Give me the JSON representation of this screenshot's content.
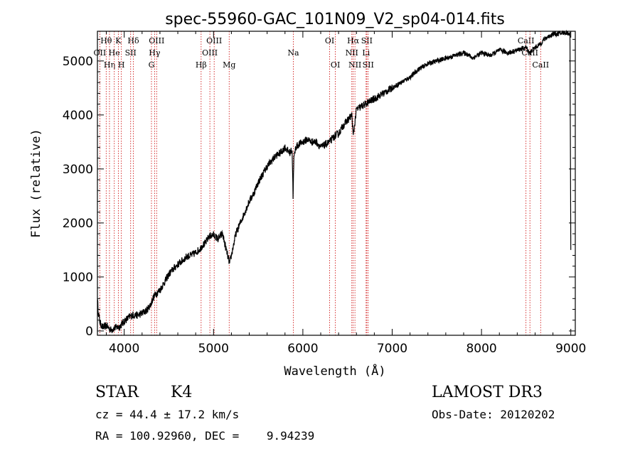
{
  "chart_data": {
    "type": "line",
    "title": "spec-55960-GAC_101N09_V2_sp04-014.fits",
    "xlabel": "Wavelength (Å)",
    "ylabel": "Flux (relative)",
    "xlim": [
      3700,
      9050
    ],
    "ylim": [
      -80,
      5550
    ],
    "xticks": [
      4000,
      5000,
      6000,
      7000,
      8000,
      9000
    ],
    "yticks": [
      0,
      1000,
      2000,
      3000,
      4000,
      5000
    ],
    "series": [
      {
        "name": "flux",
        "x": [
          3700,
          3710,
          3730,
          3760,
          3800,
          3850,
          3900,
          3950,
          4000,
          4050,
          4100,
          4150,
          4200,
          4250,
          4300,
          4320,
          4350,
          4400,
          4450,
          4500,
          4550,
          4600,
          4650,
          4700,
          4750,
          4800,
          4850,
          4880,
          4900,
          4950,
          5000,
          5050,
          5100,
          5150,
          5180,
          5200,
          5250,
          5300,
          5350,
          5400,
          5450,
          5500,
          5550,
          5600,
          5650,
          5700,
          5750,
          5800,
          5850,
          5880,
          5890,
          5900,
          5920,
          5950,
          6000,
          6050,
          6100,
          6150,
          6200,
          6250,
          6300,
          6350,
          6400,
          6450,
          6500,
          6550,
          6563,
          6600,
          6650,
          6700,
          6750,
          6800,
          6850,
          6900,
          7000,
          7100,
          7200,
          7300,
          7400,
          7500,
          7600,
          7700,
          7800,
          7850,
          7900,
          7950,
          8000,
          8100,
          8200,
          8300,
          8400,
          8500,
          8540,
          8600,
          8650,
          8700,
          8750,
          8800,
          8850,
          8900,
          8950,
          8990,
          9000
        ],
        "y": [
          600,
          350,
          150,
          60,
          100,
          20,
          60,
          80,
          180,
          250,
          300,
          290,
          330,
          380,
          500,
          600,
          680,
          760,
          900,
          1050,
          1150,
          1230,
          1300,
          1380,
          1400,
          1450,
          1520,
          1600,
          1600,
          1750,
          1780,
          1700,
          1800,
          1450,
          1250,
          1400,
          1800,
          2000,
          2200,
          2400,
          2550,
          2750,
          2900,
          3050,
          3150,
          3250,
          3300,
          3400,
          3300,
          3350,
          2500,
          3200,
          3400,
          3450,
          3500,
          3550,
          3500,
          3500,
          3400,
          3450,
          3500,
          3600,
          3650,
          3800,
          3900,
          4000,
          3600,
          4100,
          4150,
          4200,
          4250,
          4300,
          4350,
          4400,
          4500,
          4600,
          4700,
          4850,
          4950,
          5000,
          5050,
          5100,
          5150,
          5120,
          5050,
          5100,
          5150,
          5100,
          5200,
          5150,
          5200,
          5250,
          5150,
          5250,
          5300,
          5400,
          5450,
          5500,
          5500,
          5520,
          5520,
          5500,
          1500
        ]
      }
    ],
    "lines": [
      {
        "name": "Hθ",
        "lambda": 3798,
        "row": 0
      },
      {
        "name": "OII",
        "lambda": 3727,
        "row": 1
      },
      {
        "name": "Hη",
        "lambda": 3835,
        "row": 2
      },
      {
        "name": "He",
        "lambda": 3889,
        "row": 1
      },
      {
        "name": "K",
        "lambda": 3934,
        "row": 0
      },
      {
        "name": "H",
        "lambda": 3968,
        "row": 2
      },
      {
        "name": "SII",
        "lambda": 4072,
        "row": 1
      },
      {
        "name": "Hδ",
        "lambda": 4102,
        "row": 0
      },
      {
        "name": "OIII",
        "lambda": 4363,
        "row": 0
      },
      {
        "name": "Hγ",
        "lambda": 4340,
        "row": 1
      },
      {
        "name": "G",
        "lambda": 4305,
        "row": 2
      },
      {
        "name": "Hβ",
        "lambda": 4861,
        "row": 2
      },
      {
        "name": "OIII",
        "lambda": 4959,
        "row": 1
      },
      {
        "name": "OIII",
        "lambda": 5007,
        "row": 0
      },
      {
        "name": "Mg",
        "lambda": 5175,
        "row": 2
      },
      {
        "name": "Na",
        "lambda": 5893,
        "row": 1
      },
      {
        "name": "OI",
        "lambda": 6300,
        "row": 0
      },
      {
        "name": "OI",
        "lambda": 6364,
        "row": 2
      },
      {
        "name": "Hα",
        "lambda": 6563,
        "row": 0
      },
      {
        "name": "NII",
        "lambda": 6548,
        "row": 1
      },
      {
        "name": "NII",
        "lambda": 6583,
        "row": 2
      },
      {
        "name": "SII",
        "lambda": 6716,
        "row": 0
      },
      {
        "name": "Li",
        "lambda": 6708,
        "row": 1
      },
      {
        "name": "SII",
        "lambda": 6731,
        "row": 2
      },
      {
        "name": "CaII",
        "lambda": 8498,
        "row": 0
      },
      {
        "name": "CaII",
        "lambda": 8542,
        "row": 1
      },
      {
        "name": "CaII",
        "lambda": 8662,
        "row": 2
      }
    ]
  },
  "info": {
    "class": "STAR",
    "subclass": "K4",
    "survey": "LAMOST DR3",
    "cz": "cz = 44.4 ± 17.2 km/s",
    "obsdate": "Obs-Date: 20120202",
    "coords": "RA = 100.92960, DEC =    9.94239"
  },
  "colors": {
    "axis": "#000000",
    "line": "#000000",
    "marker": "#cc0000"
  }
}
